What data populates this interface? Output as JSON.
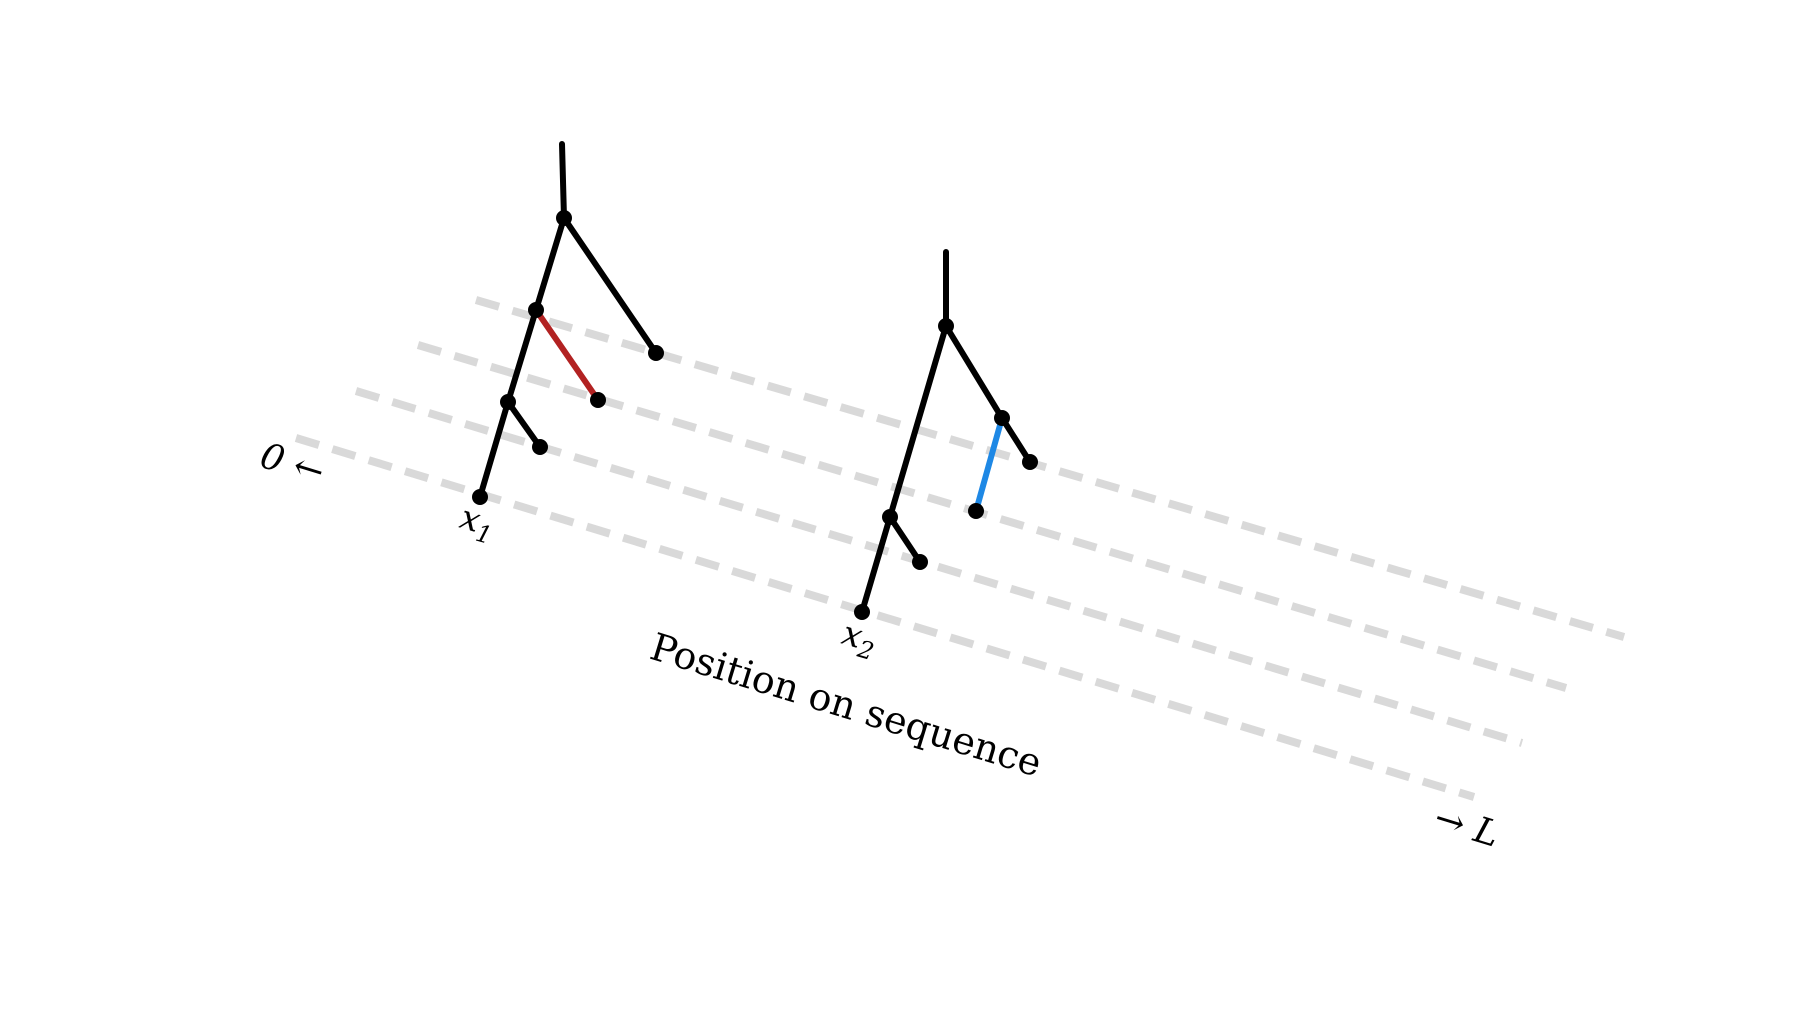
{
  "colors": {
    "lane": "#d9d9d9",
    "tree": "#000000",
    "highlight_red": "#b22222",
    "highlight_blue": "#1e88e5"
  },
  "labels": {
    "start": "0 ←",
    "end": "→ L",
    "axis_title": "Position on sequence",
    "tree1_leaf_base": "x",
    "tree1_leaf_sub": "1",
    "tree2_leaf_base": "x",
    "tree2_leaf_sub": "2"
  }
}
